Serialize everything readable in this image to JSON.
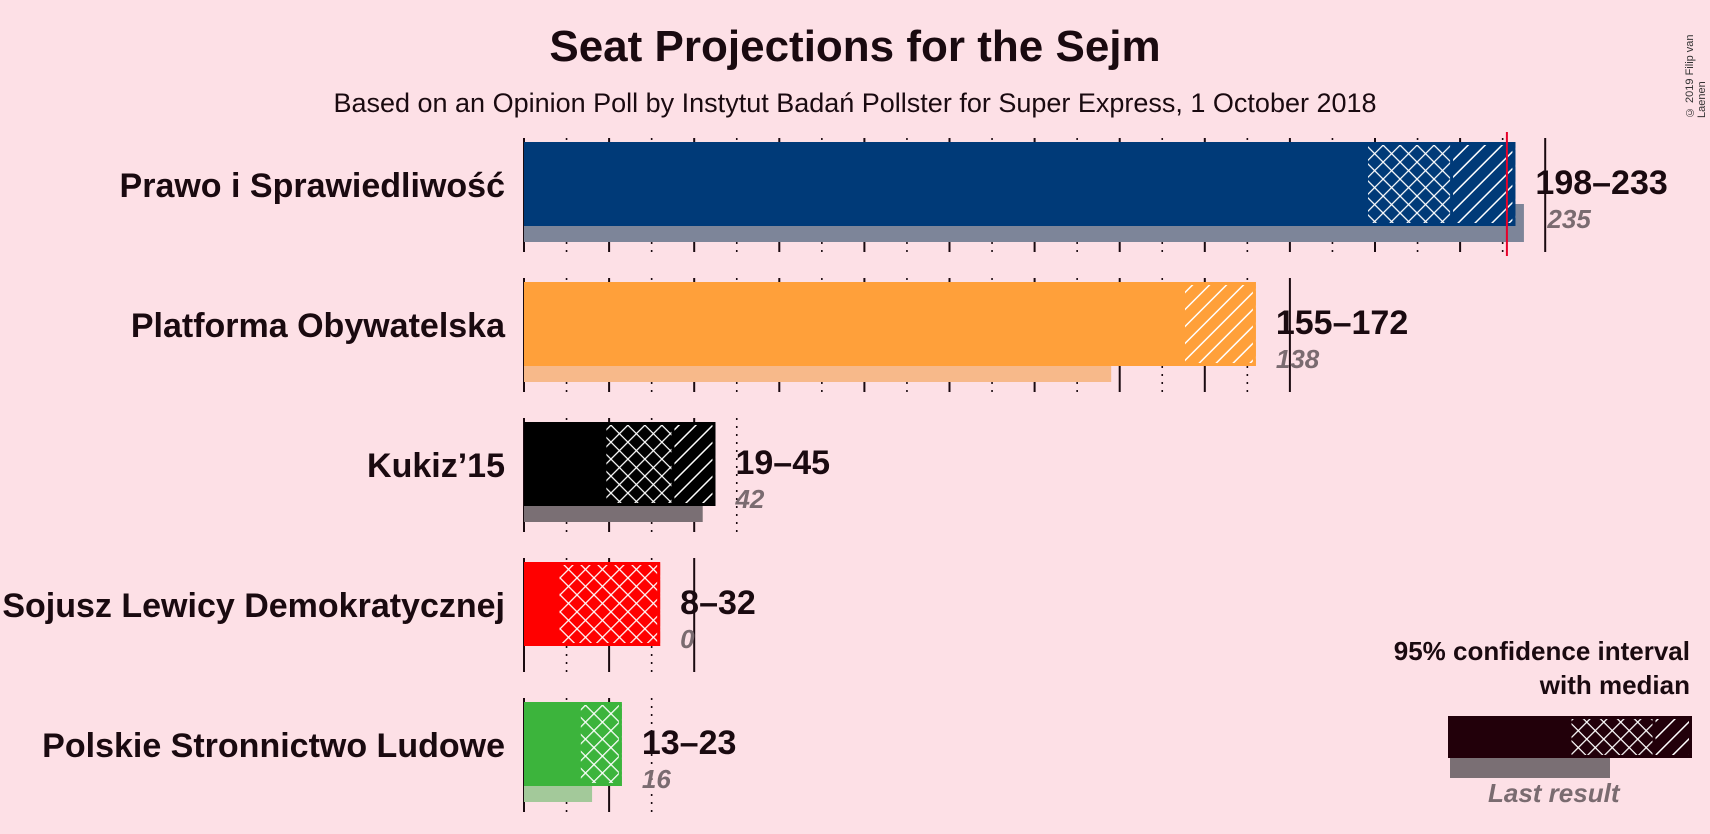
{
  "chart_data": {
    "type": "bar",
    "title": "Seat Projections for the Sejm",
    "subtitle": "Based on an Opinion Poll by Instytut Badań Pollster for Super Express, 1 October 2018",
    "copyright": "© 2019 Filip van Laenen",
    "majority_threshold": 231,
    "grid_step": 10,
    "x_max": 240,
    "parties": [
      {
        "name": "Prawo i Sprawiedliwość",
        "low": 198,
        "median": 218,
        "high": 233,
        "range_label": "198–233",
        "last_result": 235,
        "last_label": "235",
        "color": "#003a78",
        "faded": "#7d8599"
      },
      {
        "name": "Platforma Obywatelska",
        "low": 155,
        "median": 155,
        "high": 172,
        "range_label": "155–172",
        "last_result": 138,
        "last_label": "138",
        "color": "#ffa03a",
        "faded": "#f7b98a"
      },
      {
        "name": "Kukiz’15",
        "low": 19,
        "median": 35,
        "high": 45,
        "range_label": "19–45",
        "last_result": 42,
        "last_label": "42",
        "color": "#000000",
        "faded": "#7a6f74"
      },
      {
        "name": "Sojusz Lewicy Demokratycznej",
        "low": 8,
        "median": 32,
        "high": 32,
        "range_label": "8–32",
        "last_result": 0,
        "last_label": "0",
        "color": "#ff0000",
        "faded": "#f08a8a"
      },
      {
        "name": "Polskie Stronnictwo Ludowe",
        "low": 13,
        "median": 23,
        "high": 23,
        "range_label": "13–23",
        "last_result": 16,
        "last_label": "16",
        "color": "#3cb43c",
        "faded": "#a3c99a"
      }
    ],
    "legend": {
      "title_line1": "95% confidence interval",
      "title_line2": "with median",
      "last_result": "Last result"
    }
  }
}
